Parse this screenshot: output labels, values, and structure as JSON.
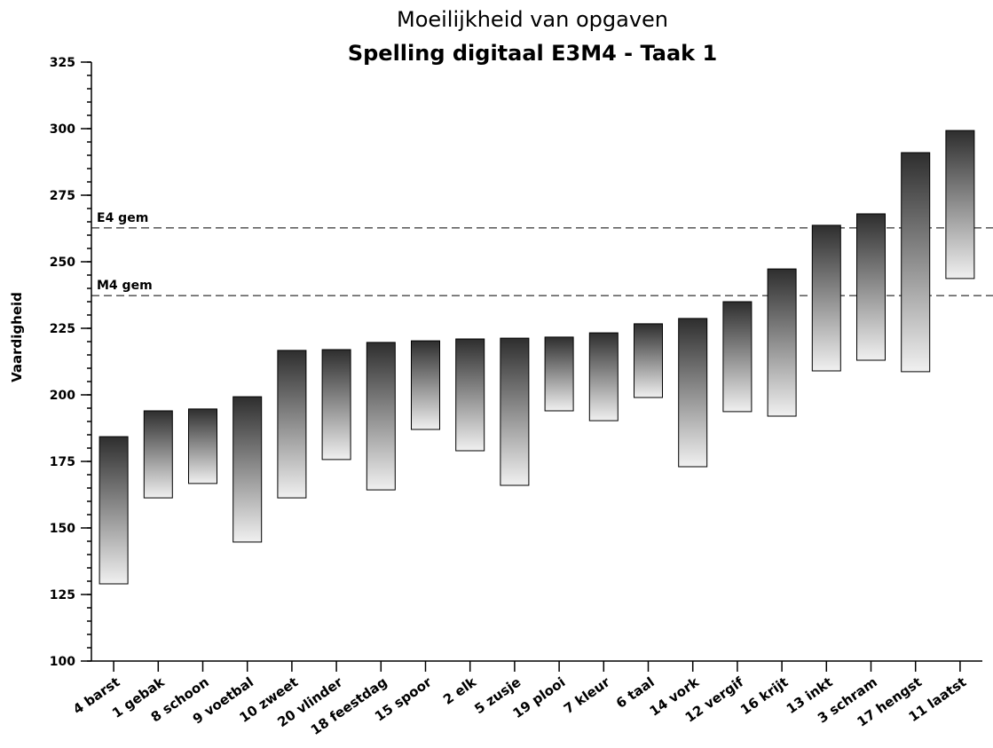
{
  "chart_data": {
    "type": "floating_bar",
    "title": "Moeilijkheid van opgaven",
    "subtitle": "Spelling digitaal E3M4 - Taak 1",
    "y_label": "Vaardigheid",
    "categories": [
      "4 barst",
      "1 gebak",
      "8 schoon",
      "9 voetbal",
      "10 zweet",
      "20 vlinder",
      "18 feestdag",
      "15 spoor",
      "2 elk",
      "5 zusje",
      "19 plooi",
      "7 kleur",
      "6 taal",
      "14 vork",
      "12 vergif",
      "16 krijt",
      "13 inkt",
      "3 schram",
      "17 hengst",
      "11 laatst"
    ],
    "low": [
      129,
      161.3,
      166.7,
      144.7,
      161.3,
      175.7,
      164.3,
      187,
      179,
      166,
      194,
      190.3,
      199,
      173,
      193.7,
      192,
      209,
      213,
      208.7,
      243.7
    ],
    "high": [
      184.3,
      194,
      194.7,
      199.3,
      216.7,
      217,
      219.7,
      220.3,
      221,
      221.3,
      221.7,
      223.3,
      226.7,
      228.7,
      235,
      247.3,
      263.7,
      268,
      291,
      299.3
    ],
    "gradient": [
      "#2e2e2e",
      "#f0f0f0"
    ],
    "ylim": [
      100,
      325
    ],
    "yticks": [
      100,
      125,
      150,
      175,
      200,
      225,
      250,
      275,
      300,
      325
    ],
    "minor_tick_step": 5,
    "reference_lines": [
      {
        "label": "E4 gem",
        "value": 262.7
      },
      {
        "label": "M4 gem",
        "value": 237.3
      }
    ]
  }
}
